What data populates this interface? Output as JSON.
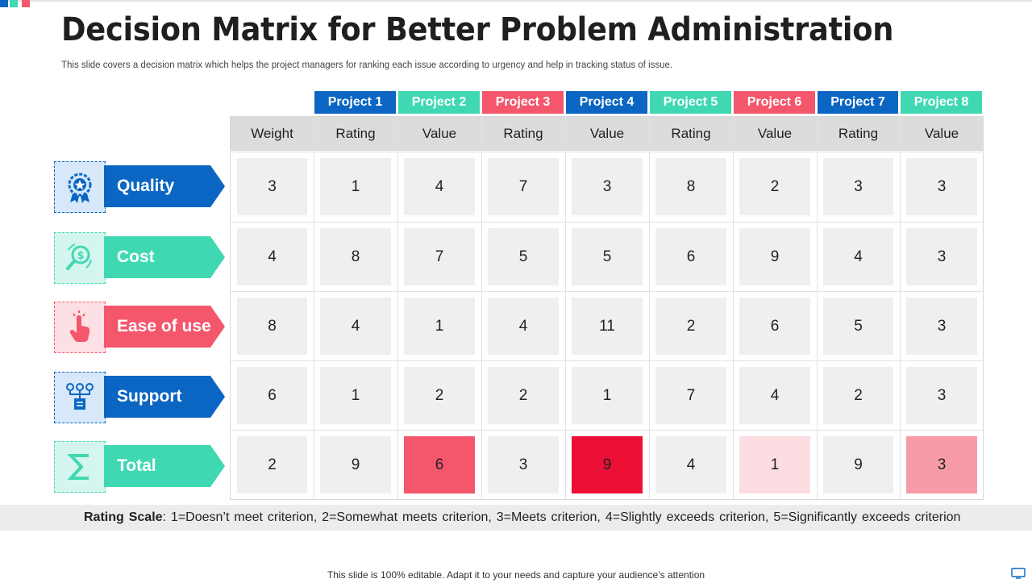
{
  "title": "Decision Matrix for Better Problem Administration",
  "subtitle": "This slide covers a decision matrix which helps the project managers for ranking each issue according to urgency and help in tracking status of issue.",
  "colors": {
    "blue": "#0a66c2",
    "teal": "#40d8b2",
    "pink": "#f4566c"
  },
  "projects": [
    {
      "label": "Project 1",
      "color": "#0a66c2"
    },
    {
      "label": "Project 2",
      "color": "#40d8b2"
    },
    {
      "label": "Project 3",
      "color": "#f4566c"
    },
    {
      "label": "Project 4",
      "color": "#0a66c2"
    },
    {
      "label": "Project 5",
      "color": "#40d8b2"
    },
    {
      "label": "Project 6",
      "color": "#f4566c"
    },
    {
      "label": "Project 7",
      "color": "#0a66c2"
    },
    {
      "label": "Project 8",
      "color": "#40d8b2"
    }
  ],
  "columns": [
    "Weight",
    "Rating",
    "Value",
    "Rating",
    "Value",
    "Rating",
    "Value",
    "Rating",
    "Value"
  ],
  "criteria": [
    {
      "label": "Quality",
      "color": "#0a66c2",
      "icon": "award-icon"
    },
    {
      "label": "Cost",
      "color": "#40d8b2",
      "icon": "cost-search-icon"
    },
    {
      "label": "Ease of use",
      "color": "#f4566c",
      "icon": "hand-tap-icon"
    },
    {
      "label": "Support",
      "color": "#0a66c2",
      "icon": "org-chart-icon"
    },
    {
      "label": "Total",
      "color": "#40d8b2",
      "icon": "sigma-icon"
    }
  ],
  "rows": [
    [
      "3",
      "1",
      "4",
      "7",
      "3",
      "8",
      "2",
      "3",
      "3"
    ],
    [
      "4",
      "8",
      "7",
      "5",
      "5",
      "6",
      "9",
      "4",
      "3"
    ],
    [
      "8",
      "4",
      "1",
      "4",
      "11",
      "2",
      "6",
      "5",
      "3"
    ],
    [
      "6",
      "1",
      "2",
      "2",
      "1",
      "7",
      "4",
      "2",
      "3"
    ],
    [
      "2",
      "9",
      "6",
      "3",
      "9",
      "4",
      "1",
      "9",
      "3"
    ]
  ],
  "highlights": {
    "4-2": "#f4566c",
    "4-4": "#ec0f36",
    "4-6": "#fbdde2",
    "4-8": "#f79ba8"
  },
  "rating_scale": {
    "label": "Rating Scale",
    "text": ": 1=Doesn’t meet criterion, 2=Somewhat meets criterion, 3=Meets criterion, 4=Slightly exceeds criterion, 5=Significantly exceeds criterion"
  },
  "footer": "This slide is 100% editable. Adapt it to your needs and capture your audience’s attention"
}
